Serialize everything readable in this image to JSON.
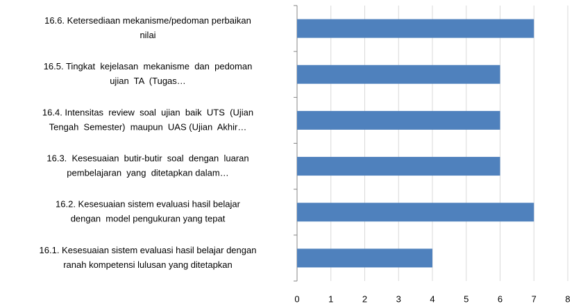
{
  "chart_data": {
    "type": "hbar",
    "categories": [
      [
        "16.6. Ketersediaan mekanisme/pedoman perbaikan",
        "nilai"
      ],
      [
        "16.5. Tingkat  kejelasan  mekanisme  dan  pedoman",
        "ujian  TA  (Tugas…"
      ],
      [
        "16.4. Intensitas  review  soal  ujian  baik  UTS  (Ujian",
        "Tengah  Semester)  maupun  UAS (Ujian  Akhir…"
      ],
      [
        "16.3.  Kesesuaian  butir-butir  soal  dengan  luaran",
        "pembelajaran  yang  ditetapkan dalam…"
      ],
      [
        "16.2. Kesesuaian sistem evaluasi hasil belajar",
        "dengan  model pengukuran yang tepat"
      ],
      [
        "16.1. Kesesuaian sistem evaluasi hasil belajar dengan",
        "ranah kompetensi lulusan yang ditetapkan"
      ]
    ],
    "values": [
      7,
      6,
      6,
      6,
      7,
      4
    ],
    "color": "#4f81bd",
    "xlim": [
      0,
      8
    ],
    "xticks": [
      0,
      1,
      2,
      3,
      4,
      5,
      6,
      7,
      8
    ],
    "grid": true
  }
}
